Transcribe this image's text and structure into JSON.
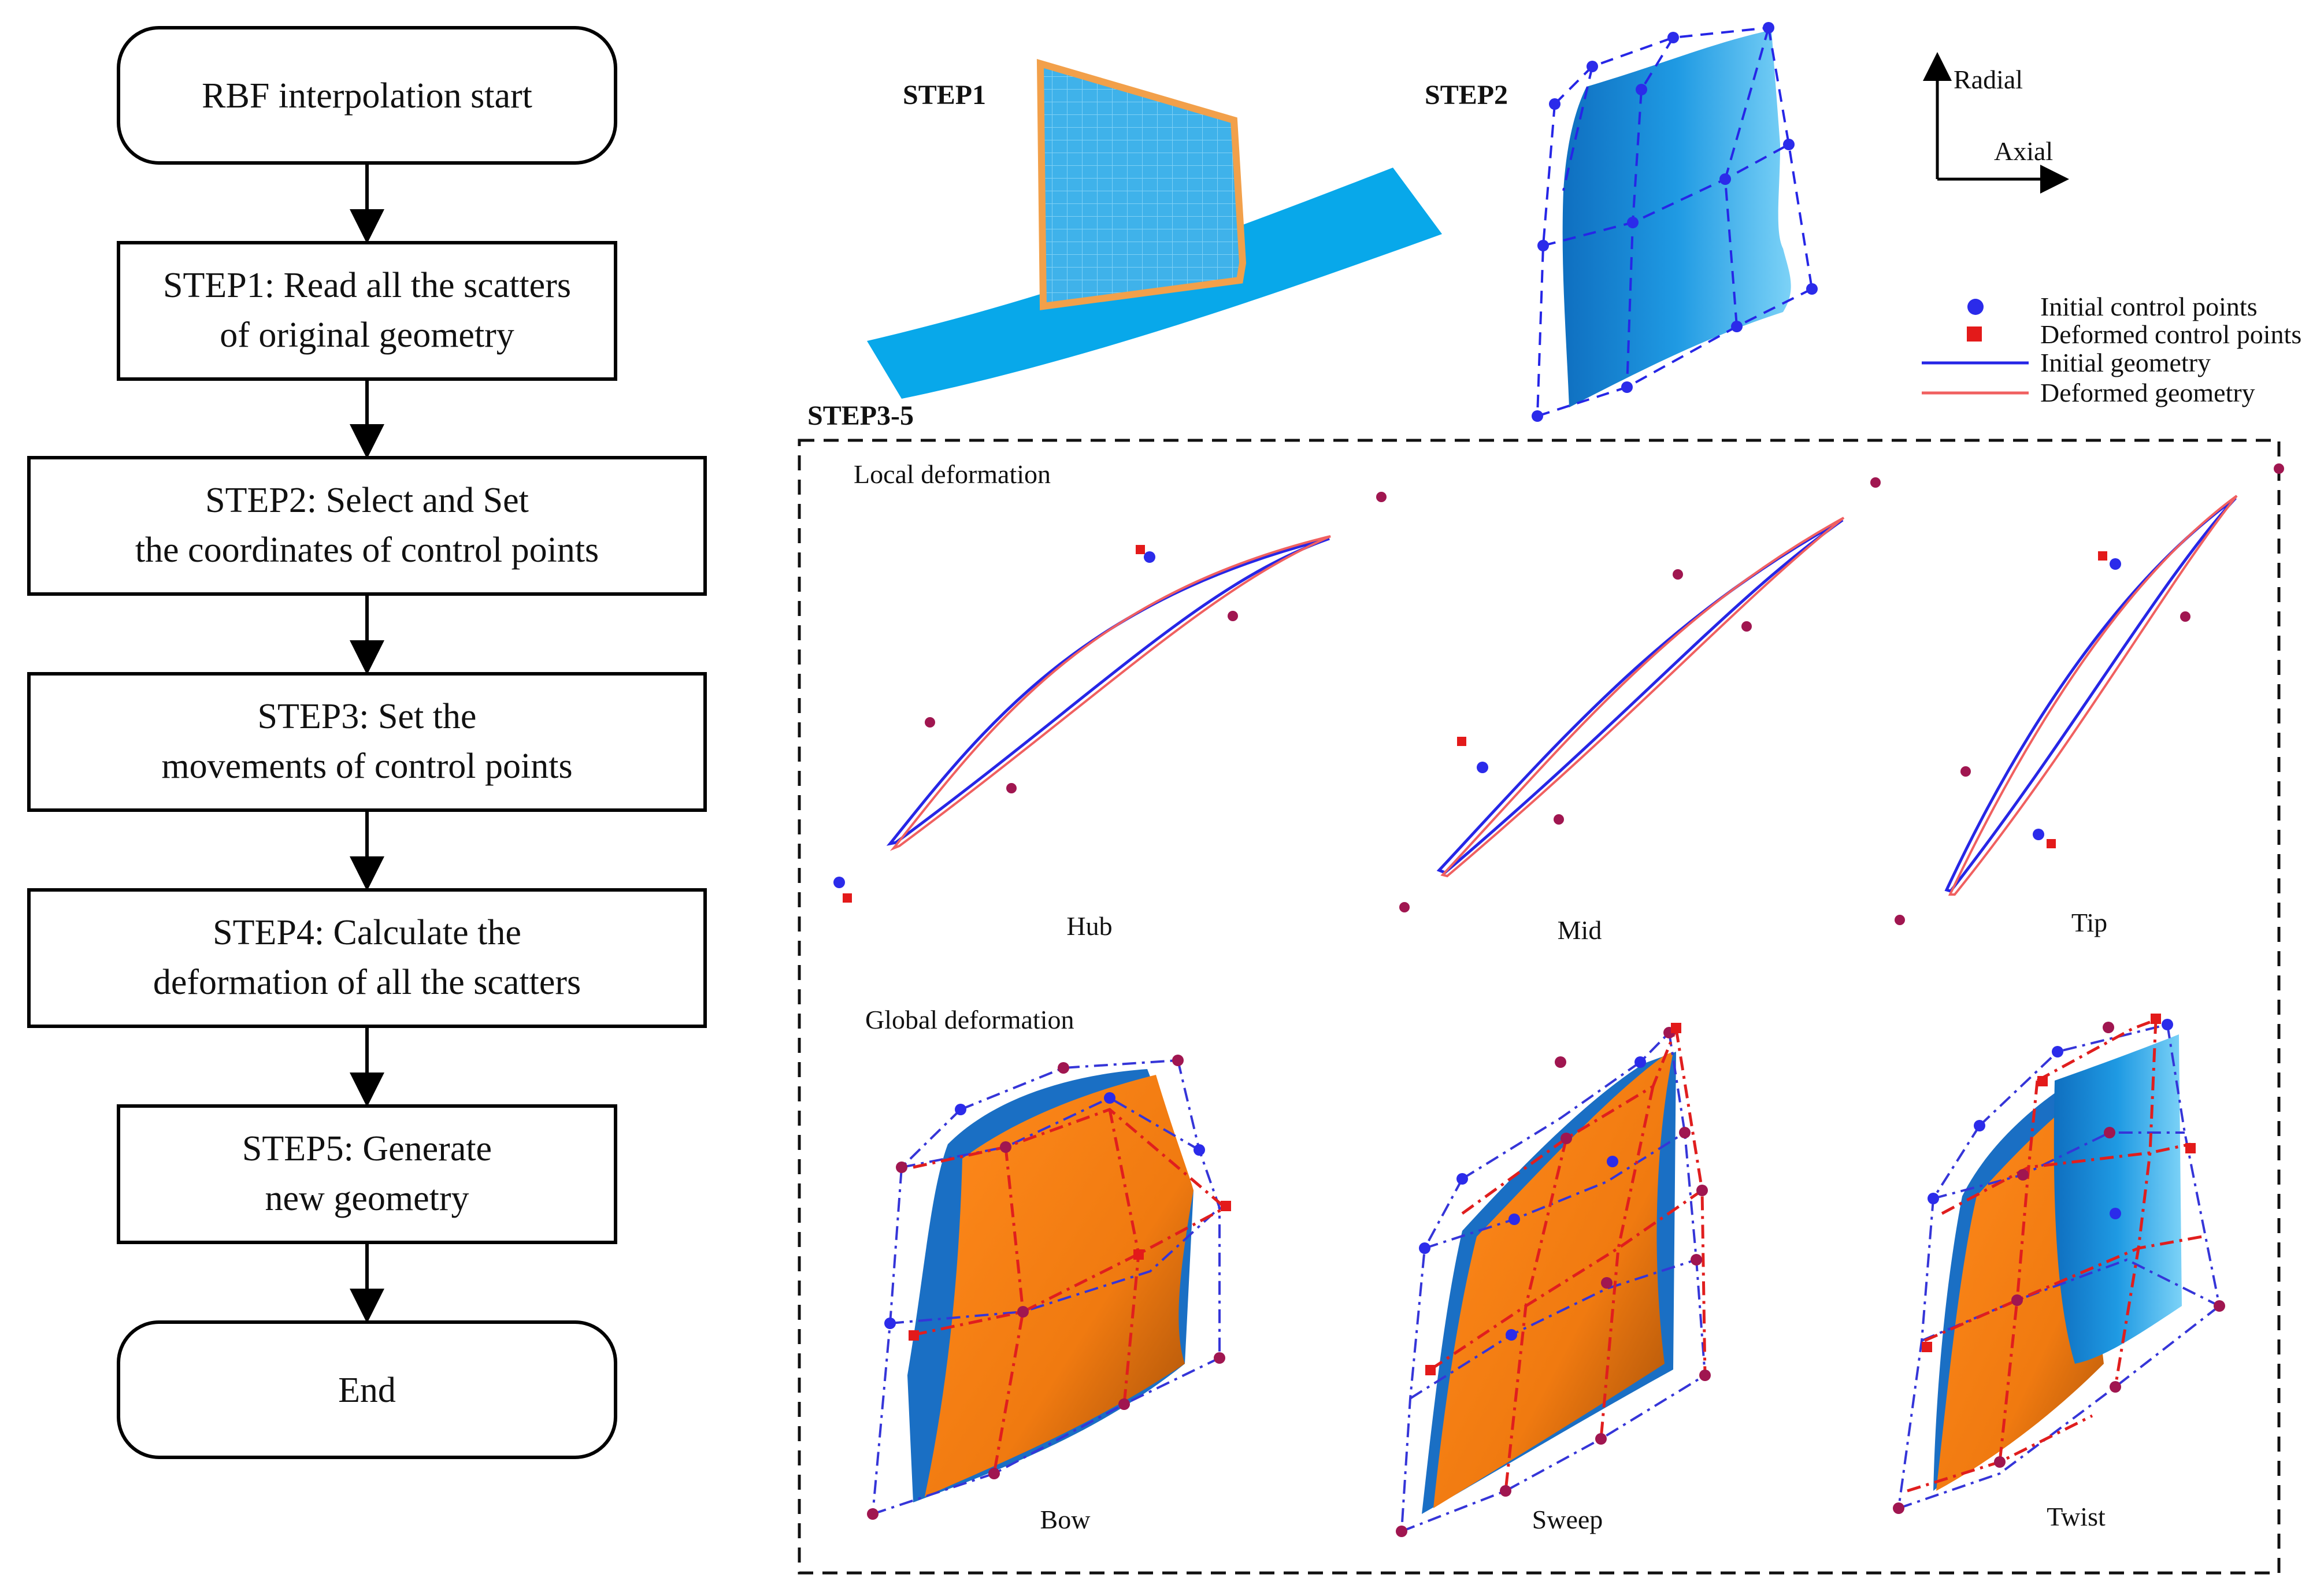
{
  "flowchart": {
    "nodes": [
      {
        "id": "start",
        "lines": [
          "RBF interpolation start"
        ]
      },
      {
        "id": "step1",
        "lines": [
          "STEP1: Read all the scatters",
          "of original geometry"
        ]
      },
      {
        "id": "step2",
        "lines": [
          "STEP2: Select and Set",
          "the coordinates of control points"
        ]
      },
      {
        "id": "step3",
        "lines": [
          "STEP3: Set the",
          "movements of control points"
        ]
      },
      {
        "id": "step4",
        "lines": [
          "STEP4: Calculate the",
          "deformation of all the scatters"
        ]
      },
      {
        "id": "step5",
        "lines": [
          "STEP5: Generate",
          "new geometry"
        ]
      },
      {
        "id": "end",
        "lines": [
          "End"
        ]
      }
    ]
  },
  "top_panel": {
    "step1_label": "STEP1",
    "step2_label": "STEP2",
    "axis_radial": "Radial",
    "axis_axial": "Axial"
  },
  "legend": {
    "initial_points": "Initial control points",
    "deformed_points": "Deformed control points",
    "initial_geometry": "Initial geometry",
    "deformed_geometry": "Deformed geometry",
    "colors": {
      "initial": "#2b2bea",
      "deformed": "#e31a1a"
    }
  },
  "step35_panel": {
    "title": "STEP3-5",
    "local_title": "Local deformation",
    "global_title": "Global deformation",
    "local_labels": [
      "Hub",
      "Mid",
      "Tip"
    ],
    "global_labels": [
      "Bow",
      "Sweep",
      "Twist"
    ]
  },
  "colors": {
    "blade_blue": "#1a8fdc",
    "hub_cyan": "#08a8ea",
    "deformed_orange": "#f07a10",
    "mesh_outline": "#f2a04a"
  }
}
